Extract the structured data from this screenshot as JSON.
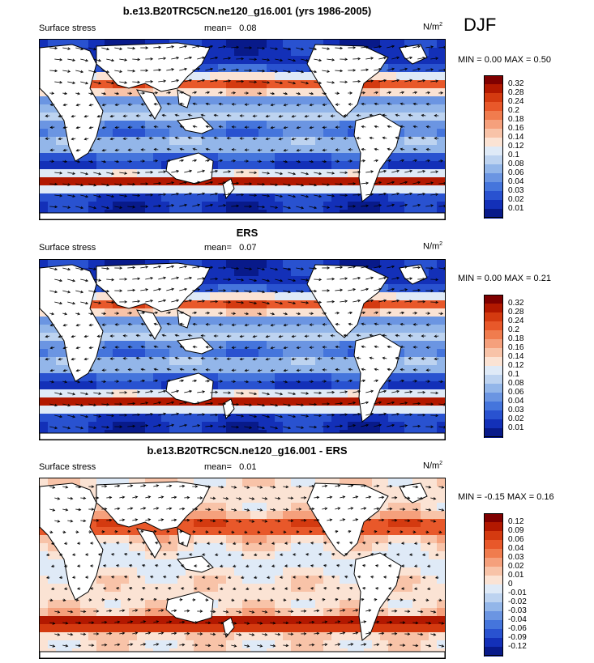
{
  "season": "DJF",
  "panels": [
    {
      "title": "b.e13.B20TRC5CN.ne120_g16.001 (yrs 1986-2005)",
      "left_label": "Surface stress",
      "mean_label": "mean=",
      "mean_value": "0.08",
      "units": "N/m",
      "units_sup": "2",
      "minmax": "MIN =   0.00 MAX =   0.50",
      "kind": "abs"
    },
    {
      "title": "ERS",
      "left_label": "Surface stress",
      "mean_label": "mean=",
      "mean_value": "0.07",
      "units": "N/m",
      "units_sup": "2",
      "minmax": "MIN =   0.00 MAX =   0.21",
      "kind": "abs"
    },
    {
      "title": "b.e13.B20TRC5CN.ne120_g16.001 - ERS",
      "left_label": "Surface stress",
      "mean_label": "mean=",
      "mean_value": "0.01",
      "units": "N/m",
      "units_sup": "2",
      "minmax": "MIN =  -0.15 MAX =   0.16",
      "kind": "diff"
    }
  ],
  "colorbars": {
    "abs": {
      "labels": [
        "0.32",
        "0.28",
        "0.24",
        "0.2",
        "0.18",
        "0.16",
        "0.14",
        "0.12",
        "0.1",
        "0.08",
        "0.06",
        "0.04",
        "0.03",
        "0.02",
        "0.01"
      ],
      "colors": [
        "#7f0000",
        "#b21800",
        "#d43a10",
        "#e8582a",
        "#f07c4e",
        "#f5a07c",
        "#f8c3a8",
        "#fbe3d4",
        "#dfeaf7",
        "#bdd3f0",
        "#93b6e9",
        "#6b95e2",
        "#4575dc",
        "#2952d0",
        "#1330b8",
        "#081a8a"
      ]
    },
    "diff": {
      "labels": [
        "0.12",
        "0.09",
        "0.06",
        "0.04",
        "0.03",
        "0.02",
        "0.01",
        "0",
        "-0.01",
        "-0.02",
        "-0.03",
        "-0.04",
        "-0.06",
        "-0.09",
        "-0.12"
      ],
      "colors": [
        "#7f0000",
        "#b21800",
        "#d43a10",
        "#e8582a",
        "#f07c4e",
        "#f5a07c",
        "#f8c3a8",
        "#fbe3d4",
        "#dfeaf7",
        "#bdd3f0",
        "#93b6e9",
        "#6b95e2",
        "#4575dc",
        "#2952d0",
        "#1330b8",
        "#081a8a"
      ]
    }
  }
}
